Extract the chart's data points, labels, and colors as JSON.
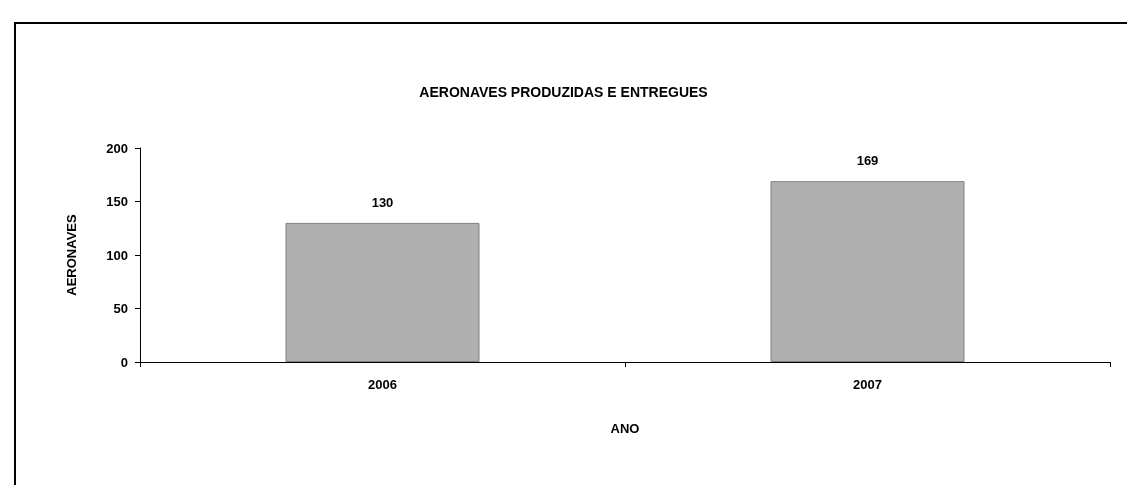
{
  "chart_data": {
    "type": "bar",
    "title": "AERONAVES PRODUZIDAS E ENTREGUES",
    "xlabel": "ANO",
    "ylabel": "AERONAVES",
    "categories": [
      "2006",
      "2007"
    ],
    "values": [
      130,
      169
    ],
    "color": "#b0b0b0",
    "ylim": [
      0,
      200
    ],
    "yticks": [
      0,
      50,
      100,
      150,
      200
    ],
    "grid": false,
    "data_labels": true
  }
}
